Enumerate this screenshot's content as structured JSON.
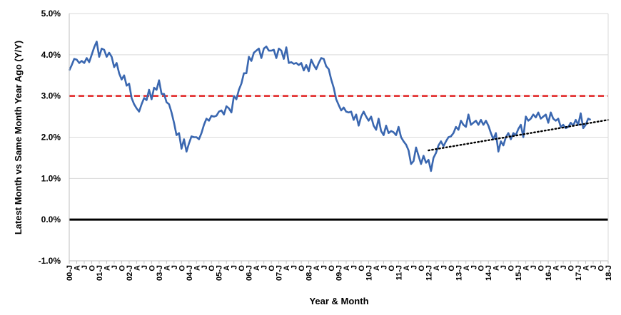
{
  "chart_data": {
    "type": "line",
    "xlabel": "Year & Month",
    "ylabel": "Latest Month vs Same Month Year Ago (Y/Y)",
    "ylim": [
      -1.0,
      5.0
    ],
    "yticks": [
      "-1.0%",
      "0.0%",
      "1.0%",
      "2.0%",
      "3.0%",
      "4.0%",
      "5.0%"
    ],
    "ytick_values": [
      -1,
      0,
      1,
      2,
      3,
      4,
      5
    ],
    "xtick_labels": [
      "00-J",
      "A",
      "J",
      "O",
      "01-J",
      "A",
      "J",
      "O",
      "02-J",
      "A",
      "J",
      "O",
      "03-J",
      "A",
      "J",
      "O",
      "04-J",
      "A",
      "J",
      "O",
      "05-J",
      "A",
      "J",
      "O",
      "06-J",
      "A",
      "J",
      "O",
      "07-J",
      "A",
      "J",
      "O",
      "08-J",
      "A",
      "J",
      "O",
      "09-J",
      "A",
      "J",
      "O",
      "10-J",
      "A",
      "J",
      "O",
      "11-J",
      "A",
      "J",
      "O",
      "12-J",
      "A",
      "J",
      "O",
      "13-J",
      "A",
      "J",
      "O",
      "14-J",
      "A",
      "J",
      "O",
      "15-J",
      "A",
      "J",
      "O",
      "16-J",
      "A",
      "J",
      "O",
      "17-J",
      "A",
      "J",
      "O",
      "18-J"
    ],
    "grid": "horizontal",
    "reference_lines": [
      {
        "value": 3.0,
        "style": "dashed",
        "color": "#e02020"
      },
      {
        "value": 0.0,
        "style": "solid",
        "color": "#000000"
      }
    ],
    "series_color": "#3a67b0",
    "trend_color": "#000000",
    "trend": {
      "x": [
        144,
        216
      ],
      "y": [
        1.68,
        2.42
      ]
    },
    "series": [
      {
        "x_start_month_index": 0,
        "values": [
          3.62,
          3.75,
          3.9,
          3.88,
          3.8,
          3.85,
          3.8,
          3.92,
          3.82,
          4.0,
          4.18,
          4.32,
          3.95,
          4.15,
          4.12,
          3.95,
          4.05,
          3.95,
          3.7,
          3.8,
          3.55,
          3.4,
          3.5,
          3.25,
          3.3,
          2.95,
          2.8,
          2.7,
          2.62,
          2.8,
          2.95,
          2.9,
          3.15,
          2.92,
          3.2,
          3.15,
          3.38,
          3.05,
          3.05,
          2.85,
          2.8,
          2.6,
          2.35,
          2.05,
          2.1,
          1.72,
          1.95,
          1.65,
          1.85,
          2.02,
          2.0,
          2.0,
          1.95,
          2.1,
          2.3,
          2.45,
          2.4,
          2.52,
          2.5,
          2.52,
          2.62,
          2.65,
          2.55,
          2.75,
          2.7,
          2.6,
          3.0,
          2.92,
          3.15,
          3.3,
          3.55,
          3.55,
          3.95,
          3.85,
          4.05,
          4.1,
          4.15,
          3.92,
          4.15,
          4.2,
          4.1,
          4.1,
          4.12,
          3.92,
          4.15,
          4.1,
          3.9,
          4.18,
          3.8,
          3.82,
          3.78,
          3.8,
          3.75,
          3.8,
          3.62,
          3.75,
          3.6,
          3.88,
          3.75,
          3.65,
          3.8,
          3.92,
          3.9,
          3.72,
          3.65,
          3.4,
          3.2,
          2.92,
          2.78,
          2.65,
          2.72,
          2.62,
          2.6,
          2.62,
          2.42,
          2.55,
          2.28,
          2.5,
          2.62,
          2.5,
          2.4,
          2.5,
          2.28,
          2.18,
          2.45,
          2.15,
          2.05,
          2.28,
          2.1,
          2.15,
          2.12,
          2.05,
          2.25,
          2.0,
          1.9,
          1.82,
          1.68,
          1.35,
          1.42,
          1.75,
          1.55,
          1.35,
          1.55,
          1.38,
          1.45,
          1.18,
          1.5,
          1.62,
          1.8,
          1.9,
          1.78,
          1.9,
          2.0,
          2.02,
          2.1,
          2.25,
          2.18,
          2.4,
          2.3,
          2.25,
          2.55,
          2.3,
          2.35,
          2.4,
          2.3,
          2.42,
          2.3,
          2.4,
          2.28,
          2.1,
          1.95,
          2.1,
          1.65,
          1.9,
          1.8,
          2.0,
          2.1,
          1.95,
          2.1,
          2.05,
          2.2,
          2.3,
          2.0,
          2.5,
          2.4,
          2.45,
          2.55,
          2.48,
          2.6,
          2.45,
          2.5,
          2.55,
          2.35,
          2.6,
          2.45,
          2.4,
          2.45,
          2.25,
          2.3,
          2.22,
          2.25,
          2.35,
          2.28,
          2.42,
          2.3,
          2.58,
          2.22,
          2.3,
          2.45,
          2.42
        ]
      }
    ]
  }
}
